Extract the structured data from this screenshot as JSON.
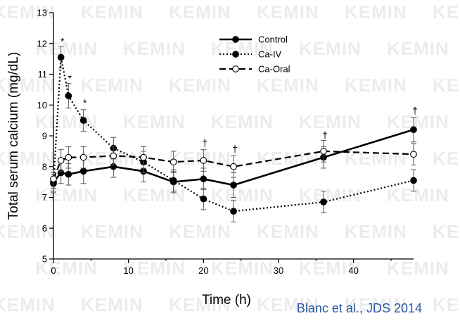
{
  "watermark": "KEMIN",
  "citation": "Blanc et al., JDS 2014",
  "chart_data": {
    "type": "line",
    "title": "",
    "xlabel": "Time (h)",
    "ylabel": "Total serum calcium (mg/dL)",
    "xlim": [
      0,
      48
    ],
    "ylim": [
      5,
      13
    ],
    "x_ticks": [
      0,
      10,
      20,
      30,
      40
    ],
    "y_ticks": [
      5,
      6,
      7,
      8,
      9,
      10,
      11,
      12,
      13
    ],
    "legend_position": "top-center",
    "grid": false,
    "series": [
      {
        "name": "Control",
        "line_style": "solid",
        "marker": "filled-circle",
        "color": "#000000",
        "x": [
          0,
          1,
          2,
          4,
          8,
          12,
          16,
          20,
          24,
          36,
          48
        ],
        "y": [
          7.5,
          7.8,
          7.75,
          7.85,
          8.0,
          7.85,
          7.5,
          7.6,
          7.4,
          8.3,
          9.2
        ],
        "err": [
          0.3,
          0.35,
          0.35,
          0.4,
          0.35,
          0.35,
          0.35,
          0.35,
          0.4,
          0.35,
          0.4
        ]
      },
      {
        "name": "Ca-IV",
        "line_style": "dotted",
        "marker": "filled-circle",
        "color": "#000000",
        "x": [
          0,
          1,
          2,
          4,
          8,
          12,
          16,
          20,
          24,
          36,
          48
        ],
        "y": [
          7.45,
          11.55,
          10.3,
          9.5,
          8.6,
          8.15,
          7.55,
          6.95,
          6.55,
          6.85,
          7.55
        ],
        "err": [
          0.3,
          0.35,
          0.4,
          0.35,
          0.35,
          0.35,
          0.35,
          0.35,
          0.35,
          0.35,
          0.35
        ]
      },
      {
        "name": "Ca-Oral",
        "line_style": "dashed",
        "marker": "open-circle",
        "color": "#000000",
        "x": [
          0,
          1,
          2,
          4,
          8,
          12,
          16,
          20,
          24,
          36,
          48
        ],
        "y": [
          7.6,
          8.2,
          8.3,
          8.3,
          8.35,
          8.3,
          8.15,
          8.2,
          8.0,
          8.5,
          8.4
        ],
        "err": [
          0.3,
          0.35,
          0.35,
          0.35,
          0.3,
          0.35,
          0.35,
          0.35,
          0.35,
          0.35,
          0.35
        ]
      }
    ],
    "annotations": [
      {
        "text": "*",
        "x": 1,
        "y": 12.05
      },
      {
        "text": "*",
        "x": 2,
        "y": 10.85
      },
      {
        "text": "*",
        "x": 4,
        "y": 10.05
      },
      {
        "text": "†",
        "x": 20,
        "y": 8.75
      },
      {
        "text": "†",
        "x": 24,
        "y": 8.55
      },
      {
        "text": "†",
        "x": 36,
        "y": 9.0
      },
      {
        "text": "†",
        "x": 48,
        "y": 9.8
      }
    ]
  }
}
